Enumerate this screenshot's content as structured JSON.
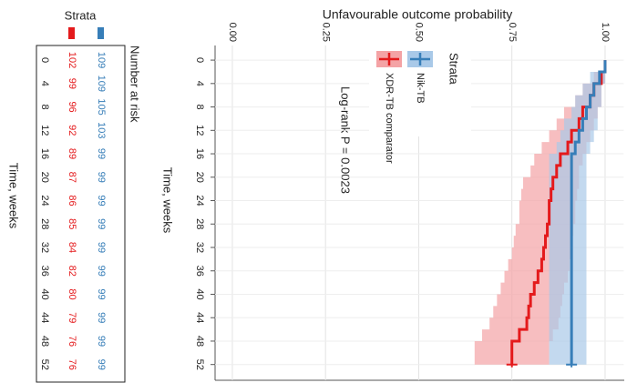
{
  "chart_data": [
    {
      "type": "step",
      "title": "Unfavourable outcome probability",
      "x_label": "Time, weeks",
      "annotation": "Log-rank P = 0.0023",
      "legend_title": "Strata",
      "xlim": [
        -2.5,
        55
      ],
      "xticks": [
        0,
        4,
        8,
        12,
        16,
        20,
        24,
        28,
        32,
        36,
        40,
        44,
        48,
        52
      ],
      "ylim": [
        -0.05,
        1.05
      ],
      "yticks": [
        {
          "value": 0,
          "label": "0.00"
        },
        0.25,
        {
          "value": 0.5,
          "label": "0.50"
        },
        0.75,
        {
          "value": 1,
          "label": "1.00"
        }
      ],
      "grid": true,
      "series": [
        {
          "name": "XDR-TB comparator",
          "color": "#e41a1c",
          "band_color": "#f4a3a5",
          "x": [
            0,
            2,
            4,
            6,
            8,
            10,
            12,
            14,
            16,
            18,
            20,
            22,
            24,
            26,
            28,
            30,
            32,
            34,
            36,
            38,
            40,
            42,
            44,
            46,
            48,
            52
          ],
          "values": [
            1,
            0.99,
            0.97,
            0.96,
            0.94,
            0.93,
            0.91,
            0.9,
            0.88,
            0.87,
            0.86,
            0.855,
            0.85,
            0.85,
            0.845,
            0.84,
            0.835,
            0.83,
            0.82,
            0.81,
            0.8,
            0.795,
            0.79,
            0.77,
            0.75,
            0.75
          ],
          "lower": [
            1,
            0.97,
            0.94,
            0.92,
            0.89,
            0.87,
            0.85,
            0.83,
            0.81,
            0.8,
            0.78,
            0.775,
            0.77,
            0.77,
            0.76,
            0.755,
            0.75,
            0.74,
            0.73,
            0.72,
            0.71,
            0.7,
            0.69,
            0.67,
            0.65,
            0.65
          ],
          "upper": [
            1,
            1,
            0.99,
            0.99,
            0.98,
            0.97,
            0.96,
            0.95,
            0.94,
            0.93,
            0.93,
            0.925,
            0.92,
            0.92,
            0.915,
            0.91,
            0.91,
            0.905,
            0.9,
            0.89,
            0.885,
            0.88,
            0.875,
            0.86,
            0.85,
            0.85
          ]
        },
        {
          "name": "Nik-TB",
          "color": "#377eb8",
          "band_color": "#a9c9e8",
          "x": [
            0,
            2,
            4,
            6,
            8,
            10,
            12,
            14,
            16,
            52
          ],
          "values": [
            1,
            0.985,
            0.97,
            0.96,
            0.95,
            0.94,
            0.93,
            0.92,
            0.91,
            0.91
          ],
          "lower": [
            1,
            0.96,
            0.94,
            0.92,
            0.91,
            0.89,
            0.88,
            0.87,
            0.85,
            0.85
          ],
          "upper": [
            1,
            1,
            0.99,
            0.99,
            0.98,
            0.98,
            0.97,
            0.96,
            0.95,
            0.95
          ]
        }
      ]
    },
    {
      "type": "risk_table",
      "title": "Number at risk",
      "x_label": "Time, weeks",
      "legend_title": "Strata",
      "xlim": [
        -2.5,
        55
      ],
      "categories": [
        0,
        4,
        8,
        12,
        16,
        20,
        24,
        28,
        32,
        36,
        40,
        44,
        48,
        52
      ],
      "series": [
        {
          "name": "XDR-TB comparator",
          "color": "#e41a1c",
          "values": [
            102,
            99,
            96,
            92,
            89,
            87,
            86,
            85,
            84,
            82,
            80,
            79,
            76,
            76
          ]
        },
        {
          "name": "Nik-TB",
          "color": "#377eb8",
          "values": [
            109,
            109,
            105,
            103,
            99,
            99,
            99,
            99,
            99,
            99,
            99,
            99,
            99,
            99
          ]
        }
      ]
    }
  ]
}
